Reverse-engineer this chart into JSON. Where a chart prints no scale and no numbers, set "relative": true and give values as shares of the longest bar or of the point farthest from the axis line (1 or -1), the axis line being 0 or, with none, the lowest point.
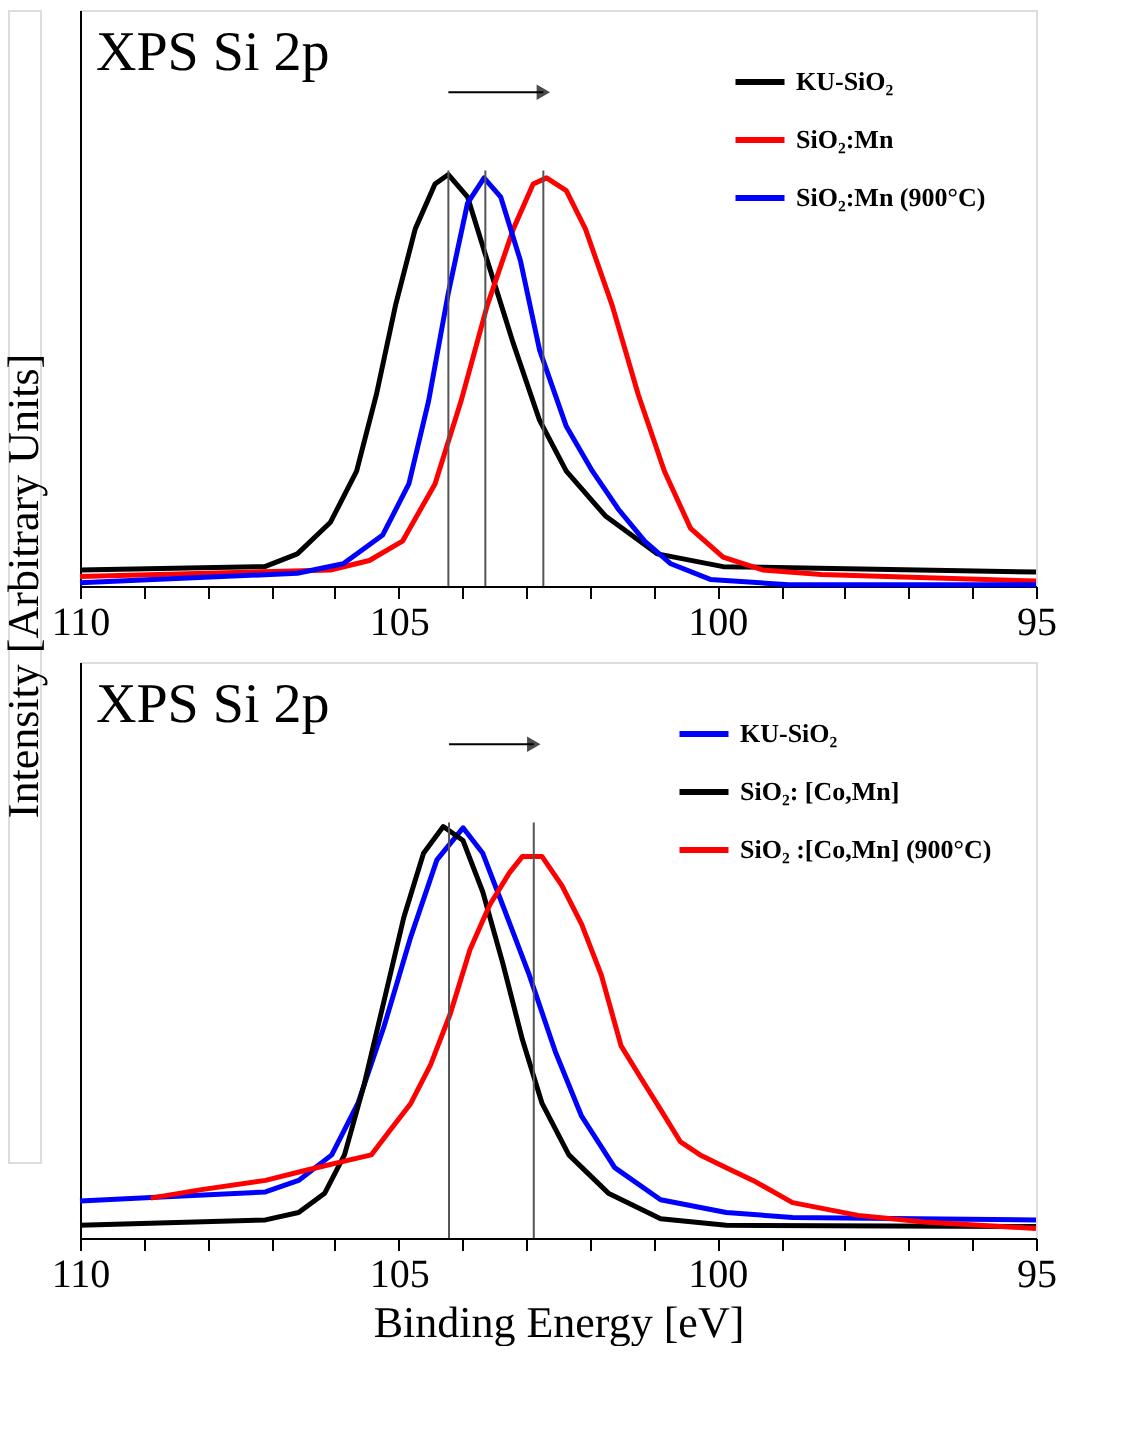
{
  "chart_data": [
    {
      "type": "line",
      "title": "XPS Si 2p",
      "ylabel": "Intensity [Arbitrary Units]",
      "relative": true,
      "xlim": [
        110,
        95
      ],
      "xticks": [
        110,
        {
          "value": 109,
          "label": null
        },
        {
          "value": 108,
          "label": null
        },
        {
          "value": 107,
          "label": null
        },
        {
          "value": 106,
          "label": null
        },
        105,
        {
          "value": 104,
          "label": null
        },
        {
          "value": 103,
          "label": null
        },
        {
          "value": 102,
          "label": null
        },
        {
          "value": 101,
          "label": null
        },
        100,
        {
          "value": 99,
          "label": null
        },
        {
          "value": 98,
          "label": null
        },
        {
          "value": 97,
          "label": null
        },
        {
          "value": 96,
          "label": null
        },
        95
      ],
      "legend": "top right",
      "grid": false,
      "series": [
        {
          "name": "KU-SiO₂",
          "color": "#000000",
          "x": [
            110,
            107.1,
            106.59,
            106.07,
            105.66,
            105.35,
            105.05,
            104.74,
            104.43,
            104.22,
            103.92,
            103.61,
            103.2,
            102.79,
            102.37,
            101.76,
            100.94,
            99.91,
            95
          ],
          "values": [
            0.039,
            0.047,
            0.078,
            0.155,
            0.279,
            0.465,
            0.682,
            0.868,
            0.977,
            1.0,
            0.946,
            0.791,
            0.589,
            0.403,
            0.279,
            0.171,
            0.078,
            0.047,
            0.034
          ]
        },
        {
          "name": "SiO₂:Mn",
          "color": "#ff0000",
          "x": [
            110,
            106.07,
            105.46,
            104.94,
            104.43,
            104.02,
            103.61,
            103.2,
            102.89,
            102.68,
            102.37,
            102.07,
            101.65,
            101.24,
            100.83,
            100.42,
            99.91,
            99.29,
            98.37,
            95
          ],
          "values": [
            0.023,
            0.039,
            0.062,
            0.109,
            0.248,
            0.45,
            0.682,
            0.868,
            0.977,
            0.992,
            0.961,
            0.868,
            0.682,
            0.465,
            0.279,
            0.14,
            0.07,
            0.039,
            0.028,
            0.012
          ]
        },
        {
          "name": "SiO₂:Mn  (900°C)",
          "color": "#0000ff",
          "x": [
            110,
            106.59,
            105.87,
            105.25,
            104.84,
            104.53,
            104.22,
            103.92,
            103.66,
            103.4,
            103.09,
            102.79,
            102.37,
            101.96,
            101.55,
            101.14,
            100.73,
            100.11,
            98.88,
            95
          ],
          "values": [
            0.008,
            0.031,
            0.054,
            0.124,
            0.248,
            0.45,
            0.713,
            0.93,
            0.992,
            0.946,
            0.791,
            0.574,
            0.388,
            0.279,
            0.186,
            0.109,
            0.054,
            0.016,
            0.003,
            0.003
          ]
        }
      ],
      "ref_lines": [
        {
          "axis": "x",
          "value": 104.22,
          "color": "#555555"
        },
        {
          "axis": "x",
          "value": 103.64,
          "color": "#555555"
        },
        {
          "axis": "x",
          "value": 102.73,
          "color": "#555555"
        }
      ]
    },
    {
      "type": "line",
      "title": "XPS Si 2p",
      "xlabel": "Binding Energy [eV]",
      "relative": true,
      "xlim": [
        110,
        95
      ],
      "xticks": [
        110,
        {
          "value": 109,
          "label": null
        },
        {
          "value": 108,
          "label": null
        },
        {
          "value": 107,
          "label": null
        },
        {
          "value": 106,
          "label": null
        },
        105,
        {
          "value": 104,
          "label": null
        },
        {
          "value": 103,
          "label": null
        },
        {
          "value": 102,
          "label": null
        },
        {
          "value": 101,
          "label": null
        },
        100,
        {
          "value": 99,
          "label": null
        },
        {
          "value": 98,
          "label": null
        },
        {
          "value": 97,
          "label": null
        },
        {
          "value": 96,
          "label": null
        },
        95
      ],
      "legend": "top right",
      "grid": false,
      "series": [
        {
          "name": "KU-SiO₂",
          "color": "#0000ff",
          "x": [
            110,
            108.64,
            107.09,
            106.57,
            106.05,
            105.64,
            105.23,
            104.81,
            104.4,
            103.99,
            103.68,
            103.37,
            102.95,
            102.54,
            102.13,
            101.61,
            100.89,
            99.86,
            98.82,
            95
          ],
          "values": [
            0.09,
            0.1,
            0.112,
            0.14,
            0.202,
            0.327,
            0.514,
            0.732,
            0.919,
            0.997,
            0.935,
            0.81,
            0.639,
            0.452,
            0.296,
            0.171,
            0.093,
            0.062,
            0.05,
            0.044
          ]
        },
        {
          "name": "SiO₂: [Co,Mn]",
          "color": "#000000",
          "x": [
            110,
            107.09,
            106.57,
            106.16,
            105.85,
            105.54,
            105.23,
            104.92,
            104.61,
            104.3,
            103.99,
            103.68,
            103.37,
            103.06,
            102.75,
            102.33,
            101.71,
            100.89,
            99.86,
            95
          ],
          "values": [
            0.031,
            0.044,
            0.062,
            0.109,
            0.202,
            0.374,
            0.576,
            0.779,
            0.935,
            1.0,
            0.966,
            0.841,
            0.67,
            0.483,
            0.327,
            0.202,
            0.109,
            0.047,
            0.031,
            0.028
          ]
        },
        {
          "name": "SiO₂ :[Co,Mn] (900°C)",
          "color": "#ff0000",
          "x": [
            108.89,
            108.12,
            107.09,
            106.47,
            105.85,
            105.43,
            105.12,
            104.81,
            104.5,
            104.19,
            103.88,
            103.57,
            103.26,
            103.06,
            102.75,
            102.44,
            102.13,
            101.82,
            101.51,
            101.2,
            100.89,
            100.58,
            100.27,
            99.86,
            99.44,
            98.82,
            97.79,
            96.76,
            95
          ],
          "values": [
            0.097,
            0.117,
            0.14,
            0.164,
            0.187,
            0.202,
            0.265,
            0.327,
            0.421,
            0.545,
            0.701,
            0.81,
            0.888,
            0.927,
            0.927,
            0.857,
            0.763,
            0.639,
            0.467,
            0.389,
            0.312,
            0.234,
            0.202,
            0.171,
            0.14,
            0.086,
            0.055,
            0.039,
            0.023
          ]
        }
      ],
      "ref_lines": [
        {
          "axis": "x",
          "value": 104.21,
          "color": "#555555"
        },
        {
          "axis": "x",
          "value": 102.88,
          "color": "#555555"
        }
      ]
    }
  ]
}
